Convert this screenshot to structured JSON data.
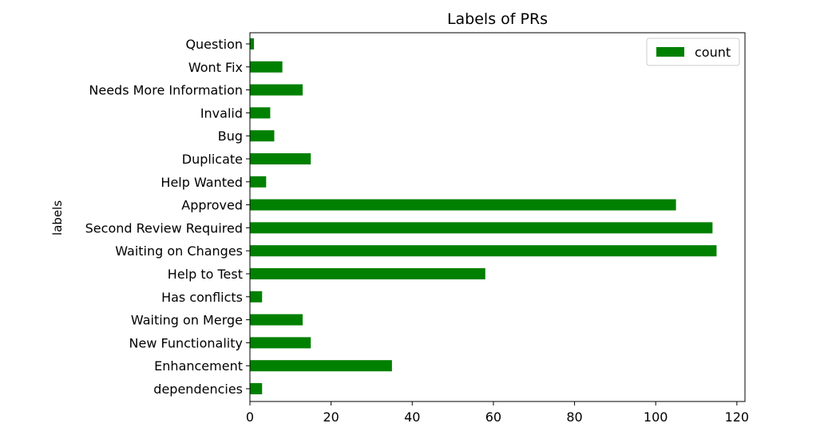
{
  "chart_data": {
    "type": "bar",
    "orientation": "horizontal",
    "title": "Labels of PRs",
    "xlabel": "",
    "ylabel": "labels",
    "xlim": [
      0,
      122
    ],
    "xticks": [
      0,
      20,
      40,
      60,
      80,
      100,
      120
    ],
    "grid": false,
    "legend": {
      "position": "top-right",
      "entries": [
        "count"
      ]
    },
    "bar_color": "#008000",
    "categories": [
      "Question",
      "Wont Fix",
      "Needs More Information",
      "Invalid",
      "Bug",
      "Duplicate",
      "Help Wanted",
      "Approved",
      "Second Review Required",
      "Waiting on Changes",
      "Help to Test",
      "Has conflicts",
      "Waiting on Merge",
      "New Functionality",
      "Enhancement",
      "dependencies"
    ],
    "series": [
      {
        "name": "count",
        "values": [
          1,
          8,
          13,
          5,
          6,
          15,
          4,
          105,
          114,
          115,
          58,
          3,
          13,
          15,
          35,
          3
        ]
      }
    ]
  }
}
